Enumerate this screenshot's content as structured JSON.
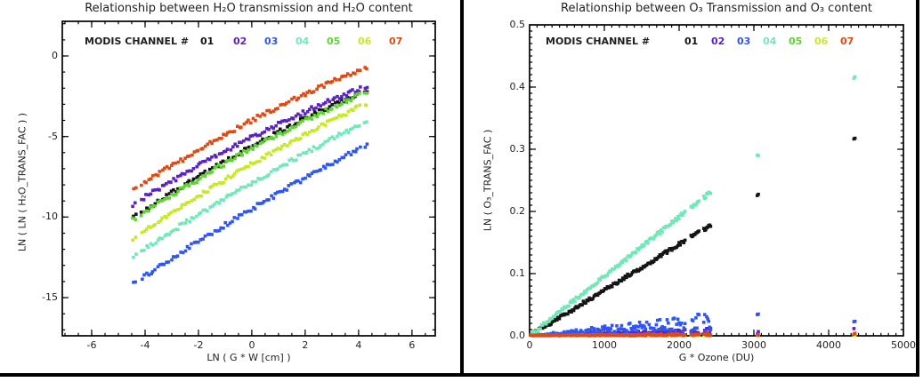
{
  "chart_data": [
    {
      "type": "scatter",
      "title": "Relationship between H₂O transmission and H₂O content",
      "xlabel": "LN ( G * W [cm] )",
      "ylabel": "LN ( LN ( H₂O_TRANS_FAC ) )",
      "axes": {
        "xlim": [
          -7.1,
          6.87
        ],
        "ylim": [
          -17.37,
          2.15
        ],
        "grid": false,
        "xticks": {
          "values": [
            -6,
            -4,
            -2,
            0,
            2,
            4,
            6
          ],
          "labels": [
            "-6",
            "-4",
            "-2",
            "0",
            "2",
            "4",
            "6"
          ],
          "minor_step": 0.5
        },
        "yticks": {
          "values": [
            0,
            -5,
            -10,
            -15
          ],
          "labels": [
            "0",
            "-5",
            "-10",
            "-15"
          ],
          "minor_step": 1
        }
      },
      "legend": {
        "label": "MODIS CHANNEL #",
        "label_x": 95,
        "y": 40,
        "entries": [
          {
            "label": "01",
            "color": "#141414",
            "x": 225
          },
          {
            "label": "02",
            "color": "#5a22c4",
            "x": 262
          },
          {
            "label": "03",
            "color": "#2f55f2",
            "x": 297
          },
          {
            "label": "04",
            "color": "#70e8b8",
            "x": 332
          },
          {
            "label": "05",
            "color": "#5cd62e",
            "x": 367
          },
          {
            "label": "06",
            "color": "#c6e926",
            "x": 402
          },
          {
            "label": "07",
            "color": "#e04a12",
            "x": 437
          }
        ]
      },
      "series": [
        {
          "name": "channel-01",
          "color": "#141414",
          "kind": "band",
          "x_start": -4.45,
          "x_end": 4.3,
          "anchor_x": [
            -4.42,
            0,
            4.3
          ],
          "anchor_y": [
            -10.0,
            -5.6,
            -2.1
          ]
        },
        {
          "name": "channel-02",
          "color": "#5a22c4",
          "kind": "band",
          "x_start": -4.45,
          "x_end": 4.3,
          "anchor_x": [
            -4.42,
            0,
            4.3
          ],
          "anchor_y": [
            -9.2,
            -5.05,
            -1.85
          ]
        },
        {
          "name": "channel-03",
          "color": "#2f55f2",
          "kind": "band",
          "x_start": -4.45,
          "x_end": 4.3,
          "anchor_x": [
            -4.42,
            0,
            4.3
          ],
          "anchor_y": [
            -14.1,
            -9.5,
            -5.5
          ]
        },
        {
          "name": "channel-04",
          "color": "#70e8b8",
          "kind": "band",
          "x_start": -4.45,
          "x_end": 4.3,
          "anchor_x": [
            -4.42,
            0,
            4.3
          ],
          "anchor_y": [
            -12.4,
            -7.9,
            -4.05
          ]
        },
        {
          "name": "channel-05",
          "color": "#5cd62e",
          "kind": "band",
          "x_start": -4.45,
          "x_end": 4.3,
          "anchor_x": [
            -4.42,
            0,
            4.3
          ],
          "anchor_y": [
            -10.15,
            -5.75,
            -2.2
          ]
        },
        {
          "name": "channel-06",
          "color": "#c6e926",
          "kind": "band",
          "x_start": -4.45,
          "x_end": 4.3,
          "anchor_x": [
            -4.42,
            0,
            4.3
          ],
          "anchor_y": [
            -11.3,
            -6.7,
            -2.95
          ]
        },
        {
          "name": "channel-07",
          "color": "#e04a12",
          "kind": "band",
          "x_start": -4.45,
          "x_end": 4.3,
          "anchor_x": [
            -4.42,
            0,
            4.3
          ],
          "anchor_y": [
            -8.3,
            -4.0,
            -0.7
          ]
        }
      ]
    },
    {
      "type": "scatter",
      "title": "Relationship between O₃ Transmission and O₃ content",
      "xlabel": "G * Ozone (DU)",
      "ylabel": "LN ( O₃_TRANS_FAC )",
      "axes": {
        "xlim": [
          0,
          5000
        ],
        "ylim": [
          0,
          0.5
        ],
        "grid": false,
        "xticks": {
          "values": [
            0,
            1000,
            2000,
            3000,
            4000,
            5000
          ],
          "labels": [
            "0",
            "1000",
            "2000",
            "3000",
            "4000",
            "5000"
          ],
          "minor_step": 100
        },
        "yticks": {
          "values": [
            0,
            0.1,
            0.2,
            0.3,
            0.4,
            0.5
          ],
          "labels": [
            "0.0",
            "0.1",
            "0.2",
            "0.3",
            "0.4",
            "0.5"
          ],
          "minor_step": 0.01
        }
      },
      "legend": {
        "label": "MODIS CHANNEL #",
        "label_x": 94,
        "y": 40,
        "entries": [
          {
            "label": "01",
            "color": "#141414",
            "x": 250
          },
          {
            "label": "02",
            "color": "#5a22c4",
            "x": 280
          },
          {
            "label": "03",
            "color": "#2f55f2",
            "x": 309
          },
          {
            "label": "04",
            "color": "#70e8b8",
            "x": 338
          },
          {
            "label": "05",
            "color": "#5cd62e",
            "x": 367
          },
          {
            "label": "06",
            "color": "#c6e926",
            "x": 396
          },
          {
            "label": "07",
            "color": "#e04a12",
            "x": 425
          }
        ]
      },
      "series": [
        {
          "name": "channel-01",
          "color": "#141414",
          "kind": "linear",
          "slope": 7.35e-05,
          "jitter": 0.006,
          "segments": [
            [
              15,
              2080,
              16
            ],
            [
              2160,
              2265,
              13
            ],
            [
              2330,
              2425,
              13
            ],
            [
              3045,
              3062,
              14
            ],
            [
              4338,
              4358,
              14
            ]
          ]
        },
        {
          "name": "channel-02",
          "color": "#5a22c4",
          "kind": "linear",
          "slope": 3e-06,
          "fan": [
            0.3,
            1.7
          ],
          "jitter": 0.002,
          "segments": [
            [
              15,
              2080,
              16
            ],
            [
              2160,
              2265,
              13
            ],
            [
              2330,
              2425,
              13
            ],
            [
              3045,
              3062,
              14
            ],
            [
              4338,
              4358,
              14
            ]
          ]
        },
        {
          "name": "channel-03",
          "color": "#2f55f2",
          "kind": "linear",
          "slope": 9e-06,
          "fan": [
            0.3,
            1.7
          ],
          "jitter": 0.003,
          "segments": [
            [
              15,
              2080,
              16
            ],
            [
              2160,
              2265,
              13
            ],
            [
              2330,
              2425,
              13
            ],
            [
              3045,
              3062,
              14
            ],
            [
              4338,
              4358,
              14
            ]
          ]
        },
        {
          "name": "channel-04",
          "color": "#70e8b8",
          "kind": "linear",
          "slope": 9.55e-05,
          "jitter": 0.006,
          "segments": [
            [
              15,
              2080,
              16
            ],
            [
              2160,
              2265,
              13
            ],
            [
              2330,
              2425,
              13
            ],
            [
              3045,
              3062,
              14
            ],
            [
              4338,
              4358,
              14
            ]
          ]
        },
        {
          "name": "channel-05",
          "color": "#5cd62e",
          "kind": "linear",
          "slope": 3e-07,
          "jitter": 0.0015,
          "segments": [
            [
              15,
              2080,
              16
            ],
            [
              2160,
              2265,
              13
            ],
            [
              2330,
              2425,
              13
            ],
            [
              3045,
              3062,
              14
            ],
            [
              4338,
              4358,
              14
            ]
          ]
        },
        {
          "name": "channel-06",
          "color": "#c6e926",
          "kind": "linear",
          "slope": 1.5e-07,
          "jitter": 0.001,
          "segments": [
            [
              15,
              2080,
              16
            ],
            [
              2160,
              2265,
              13
            ],
            [
              2330,
              2425,
              13
            ],
            [
              3045,
              3062,
              14
            ],
            [
              4338,
              4358,
              14
            ]
          ]
        },
        {
          "name": "channel-07",
          "color": "#e04a12",
          "kind": "linear",
          "slope": 8e-07,
          "jitter": 0.003,
          "segments": [
            [
              15,
              2080,
              16
            ],
            [
              2160,
              2265,
              13
            ],
            [
              2330,
              2425,
              13
            ],
            [
              3045,
              3062,
              14
            ],
            [
              4338,
              4358,
              14
            ]
          ]
        }
      ]
    }
  ]
}
